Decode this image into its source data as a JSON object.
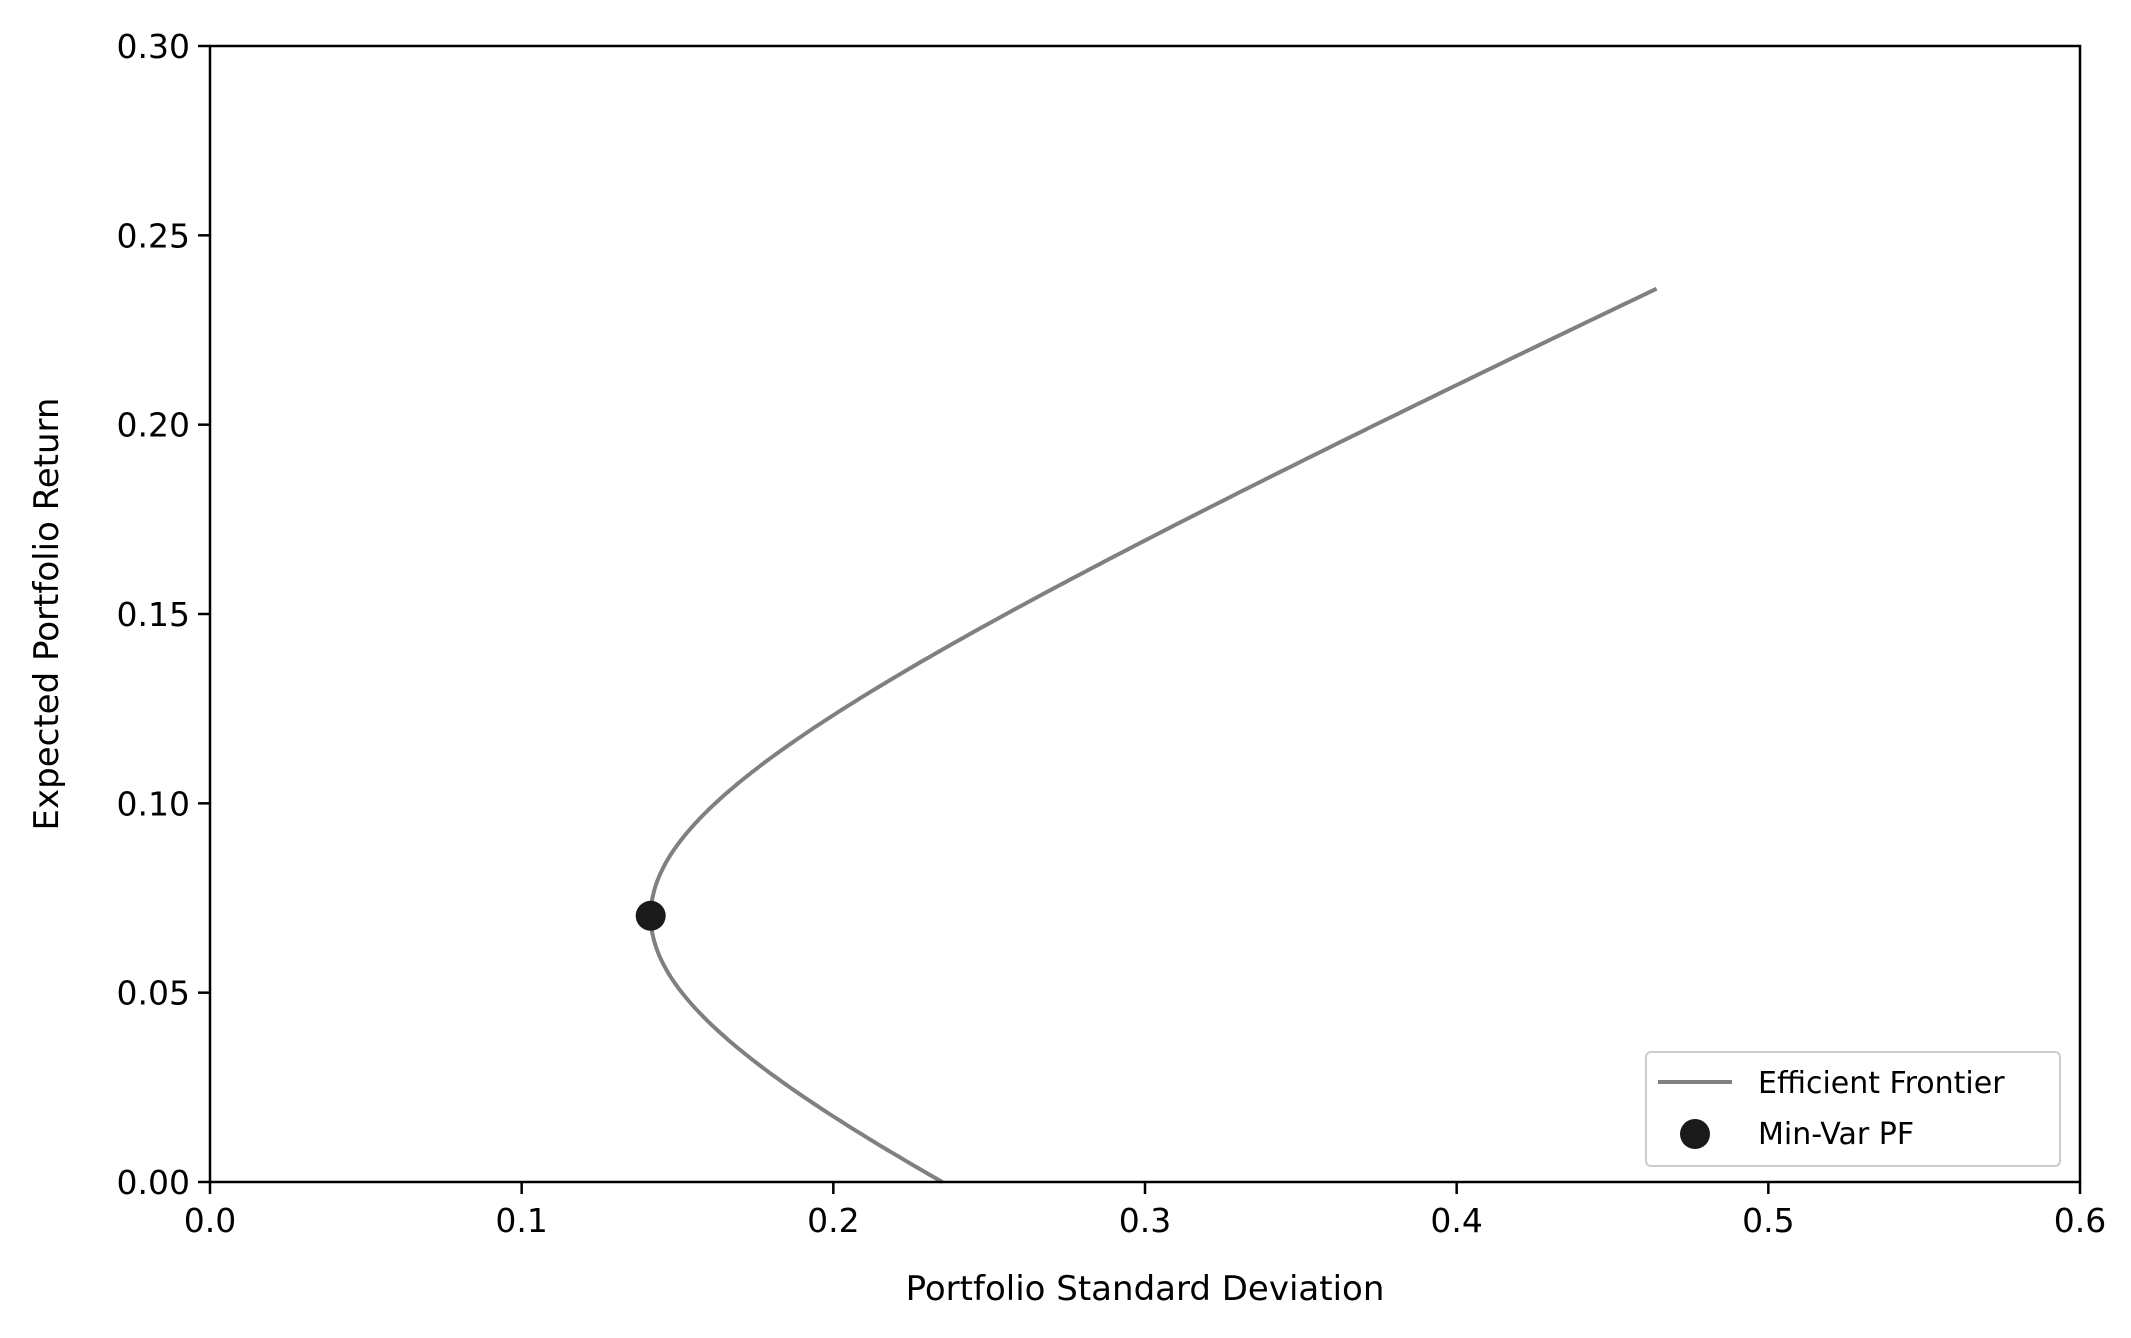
{
  "chart_data": {
    "type": "line",
    "xlabel": "Portfolio Standard Deviation",
    "ylabel": "Expected Portfolio Return",
    "xlim": [
      0.0,
      0.6
    ],
    "ylim": [
      0.0,
      0.3
    ],
    "xticks": [
      "0.0",
      "0.1",
      "0.2",
      "0.3",
      "0.4",
      "0.5",
      "0.6"
    ],
    "yticks": [
      "0.00",
      "0.05",
      "0.10",
      "0.15",
      "0.20",
      "0.25",
      "0.30"
    ],
    "grid": false,
    "legend_position": "bottom-right",
    "series": [
      {
        "name": "Efficient Frontier",
        "kind": "line",
        "color": "#808080",
        "frontier": {
          "min_std": 0.1414,
          "min_return": 0.0703,
          "spread": 0.3746
        },
        "y_range": [
          0.0,
          0.2359
        ]
      },
      {
        "name": "Min-Var PF",
        "kind": "scatter",
        "color": "#1a1a1a",
        "points": [
          {
            "x": 0.1414,
            "y": 0.0703
          }
        ]
      }
    ]
  }
}
